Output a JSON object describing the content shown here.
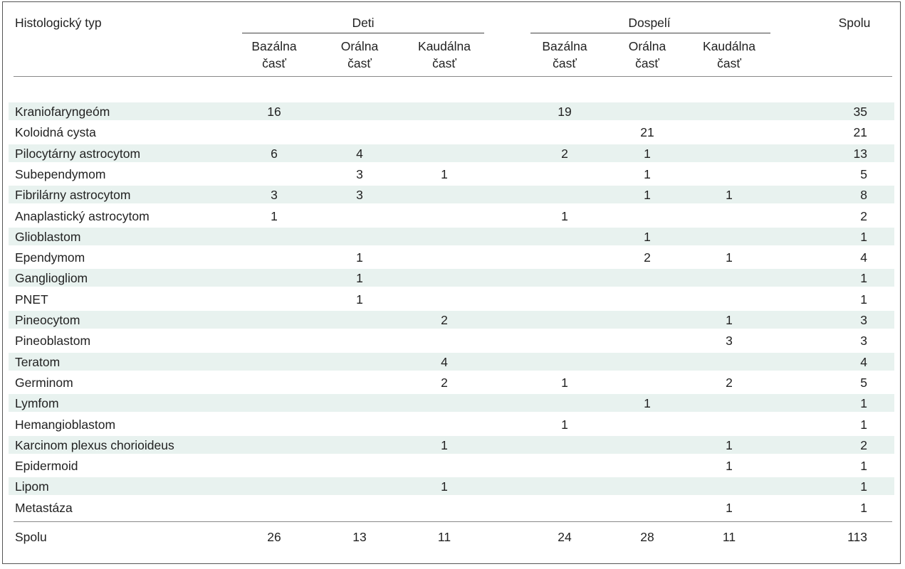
{
  "header": {
    "col_type": "Histologický typ",
    "group_deti": "Deti",
    "group_dospeli": "Dospelí",
    "col_total": "Spolu",
    "sub_cols": [
      [
        "Bazálna",
        "časť"
      ],
      [
        "Orálna",
        "časť"
      ],
      [
        "Kaudálna",
        "časť"
      ],
      [
        "Bazálna",
        "časť"
      ],
      [
        "Orálna",
        "časť"
      ],
      [
        "Kaudálna",
        "časť"
      ]
    ]
  },
  "rows": [
    {
      "type": "Kraniofaryngeóm",
      "values": [
        "16",
        "",
        "",
        "19",
        "",
        "",
        "35"
      ]
    },
    {
      "type": "Koloidná cysta",
      "values": [
        "",
        "",
        "",
        "",
        "21",
        "",
        "21"
      ]
    },
    {
      "type": "Pilocytárny astrocytom",
      "values": [
        "6",
        "4",
        "",
        "2",
        "1",
        "",
        "13"
      ]
    },
    {
      "type": "Subependymom",
      "values": [
        "",
        "3",
        "1",
        "",
        "1",
        "",
        "5"
      ]
    },
    {
      "type": "Fibrilárny astrocytom",
      "values": [
        "3",
        "3",
        "",
        "",
        "1",
        "1",
        "8"
      ]
    },
    {
      "type": "Anaplastický astrocytom",
      "values": [
        "1",
        "",
        "",
        "1",
        "",
        "",
        "2"
      ]
    },
    {
      "type": "Glioblastom",
      "values": [
        "",
        "",
        "",
        "",
        "1",
        "",
        "1"
      ]
    },
    {
      "type": "Ependymom",
      "values": [
        "",
        "1",
        "",
        "",
        "2",
        "1",
        "4"
      ]
    },
    {
      "type": "Gangliogliom",
      "values": [
        "",
        "1",
        "",
        "",
        "",
        "",
        "1"
      ]
    },
    {
      "type": "PNET",
      "values": [
        "",
        "1",
        "",
        "",
        "",
        "",
        "1"
      ]
    },
    {
      "type": "Pineocytom",
      "values": [
        "",
        "",
        "2",
        "",
        "",
        "1",
        "3"
      ]
    },
    {
      "type": "Pineoblastom",
      "values": [
        "",
        "",
        "",
        "",
        "",
        "3",
        "3"
      ]
    },
    {
      "type": "Teratom",
      "values": [
        "",
        "",
        "4",
        "",
        "",
        "",
        "4"
      ]
    },
    {
      "type": "Germinom",
      "values": [
        "",
        "",
        "2",
        "1",
        "",
        "2",
        "5"
      ]
    },
    {
      "type": "Lymfom",
      "values": [
        "",
        "",
        "",
        "",
        "1",
        "",
        "1"
      ]
    },
    {
      "type": "Hemangioblastom",
      "values": [
        "",
        "",
        "",
        "1",
        "",
        "",
        "1"
      ]
    },
    {
      "type": "Karcinom plexus chorioideus",
      "values": [
        "",
        "",
        "1",
        "",
        "",
        "1",
        "2"
      ]
    },
    {
      "type": "Epidermoid",
      "values": [
        "",
        "",
        "",
        "",
        "",
        "1",
        "1"
      ]
    },
    {
      "type": "Lipom",
      "values": [
        "",
        "",
        "1",
        "",
        "",
        "",
        "1"
      ]
    },
    {
      "type": "Metastáza",
      "values": [
        "",
        "",
        "",
        "",
        "",
        "1",
        "1"
      ]
    }
  ],
  "footer": {
    "label": "Spolu",
    "values": [
      "26",
      "13",
      "11",
      "24",
      "28",
      "11",
      "113"
    ]
  }
}
